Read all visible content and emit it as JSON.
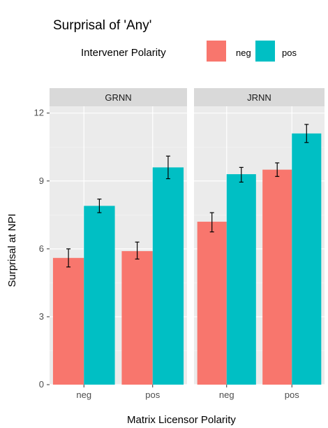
{
  "chart_data": {
    "type": "bar",
    "title": "Surprisal of 'Any'",
    "xlabel": "Matrix Licensor Polarity",
    "ylabel": "Surprisal at NPI",
    "ylim": [
      0,
      12.3
    ],
    "yticks": [
      0,
      3,
      6,
      9,
      12
    ],
    "categories": [
      "neg",
      "pos"
    ],
    "legend": {
      "title": "Intervener Polarity",
      "position": "top",
      "entries": [
        {
          "name": "neg",
          "color": "#F8766D"
        },
        {
          "name": "pos",
          "color": "#00BFC4"
        }
      ]
    },
    "grid": true,
    "panels": [
      {
        "name": "GRNN",
        "series": [
          {
            "name": "neg",
            "values": [
              5.6,
              5.9
            ],
            "err_low": [
              5.2,
              5.55
            ],
            "err_high": [
              6.0,
              6.3
            ]
          },
          {
            "name": "pos",
            "values": [
              7.9,
              9.6
            ],
            "err_low": [
              7.6,
              9.1
            ],
            "err_high": [
              8.2,
              10.1
            ]
          }
        ]
      },
      {
        "name": "JRNN",
        "series": [
          {
            "name": "neg",
            "values": [
              7.2,
              9.5
            ],
            "err_low": [
              6.75,
              9.2
            ],
            "err_high": [
              7.6,
              9.8
            ]
          },
          {
            "name": "pos",
            "values": [
              9.3,
              11.1
            ],
            "err_low": [
              8.95,
              10.7
            ],
            "err_high": [
              9.6,
              11.5
            ]
          }
        ]
      }
    ]
  }
}
